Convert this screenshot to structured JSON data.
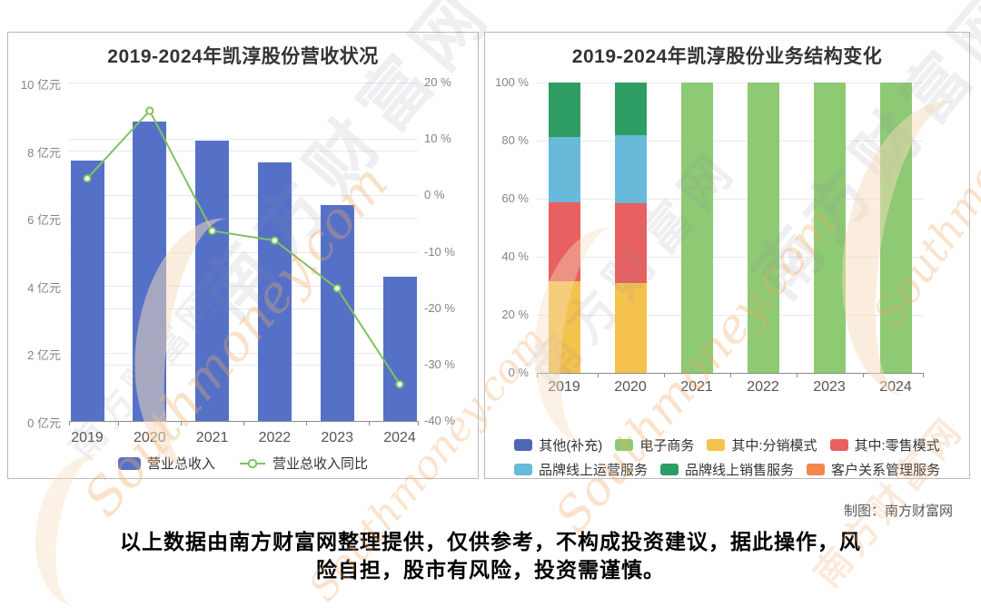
{
  "watermark": {
    "cn": "南方财富网",
    "en": "Southmoney.com"
  },
  "credit": "制图：南方财富网",
  "disclaimer": {
    "lines": [
      "以上数据由南方财富网整理提供，仅供参考，不构成投资建议，据此操作，风",
      "险自担，股市有风险，投资需谨慎。"
    ]
  },
  "chart_data": [
    {
      "type": "bar",
      "title": "2019-2024年凯淳股份营收状况",
      "categories": [
        "2019",
        "2020",
        "2021",
        "2022",
        "2023",
        "2024"
      ],
      "series": [
        {
          "name": "营业总收入",
          "chart": "bar",
          "unit": "亿元",
          "color": "#5571c7",
          "values": [
            7.7,
            8.85,
            8.29,
            7.63,
            6.37,
            4.25
          ]
        },
        {
          "name": "营业总收入同比",
          "chart": "line",
          "unit": "%",
          "color": "#7fc25f",
          "values": [
            3.0,
            15.0,
            -6.3,
            -8.0,
            -16.5,
            -33.5
          ]
        }
      ],
      "y_left": {
        "min": 0,
        "max": 10,
        "ticks": [
          "10 亿元",
          "8 亿元",
          "6 亿元",
          "4 亿元",
          "2 亿元",
          "0 亿元"
        ]
      },
      "y_right": {
        "min": -40,
        "max": 20,
        "ticks": [
          "20 %",
          "10 %",
          "0 %",
          "-10 %",
          "-20 %",
          "-30 %",
          "-40 %"
        ]
      },
      "legend_position": "bottom",
      "grid": true
    },
    {
      "type": "stacked-bar",
      "title": "2019-2024年凯淳股份业务结构变化",
      "categories": [
        "2019",
        "2020",
        "2021",
        "2022",
        "2023",
        "2024"
      ],
      "unit": "%",
      "y": {
        "min": 0,
        "max": 100,
        "ticks": [
          "100 %",
          "80 %",
          "60 %",
          "40 %",
          "20 %",
          "0 %"
        ]
      },
      "series": [
        {
          "name": "其他(补充)",
          "color": "#4d68b3",
          "values": [
            0,
            0,
            0,
            0,
            0,
            0
          ]
        },
        {
          "name": "电子商务",
          "color": "#8ec973",
          "values": [
            0,
            0,
            100,
            100,
            100,
            100
          ]
        },
        {
          "name": "其中:分销模式",
          "color": "#f4c24d",
          "values": [
            31.6,
            31.0,
            0,
            0,
            0,
            0
          ]
        },
        {
          "name": "其中:零售模式",
          "color": "#e8605f",
          "values": [
            27.1,
            27.5,
            0,
            0,
            0,
            0
          ]
        },
        {
          "name": "品牌线上运营服务",
          "color": "#68b9da",
          "values": [
            22.5,
            23.3,
            0,
            0,
            0,
            0
          ]
        },
        {
          "name": "品牌线上销售服务",
          "color": "#2d9d63",
          "values": [
            18.8,
            18.2,
            0,
            0,
            0,
            0
          ]
        },
        {
          "name": "客户关系管理服务",
          "color": "#f1874a",
          "values": [
            0,
            0,
            0,
            0,
            0,
            0
          ]
        }
      ],
      "legend_position": "bottom",
      "grid": true
    }
  ]
}
